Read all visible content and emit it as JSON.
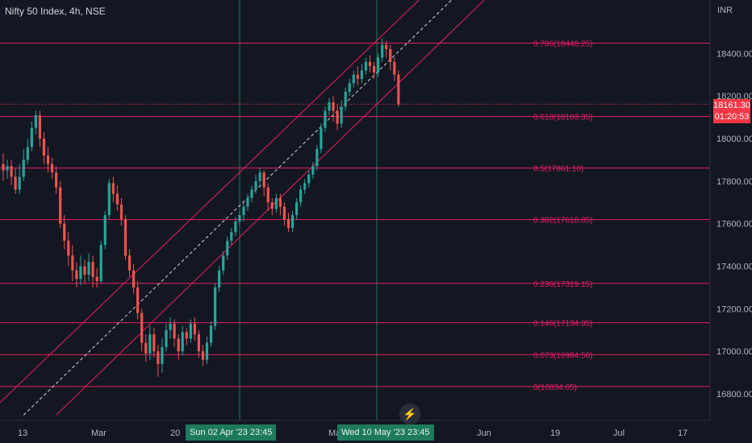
{
  "header": {
    "title": "Nifty 50 Index, 4h, NSE",
    "currency": "INR"
  },
  "last_price": {
    "value": "18161.30",
    "countdown": "01:20:53"
  },
  "crosshair_tags": [
    {
      "label": "Sun 02 Apr '23  23:45"
    },
    {
      "label": "Wed 10 May '23  23:45"
    }
  ],
  "colors": {
    "background": "#131722",
    "up": "#26a69a",
    "down": "#ef5350",
    "fib": "#e91e63",
    "channel": "#e91e63",
    "last_price": "#f23645"
  },
  "icons": {
    "alert": "lightning-bolt-icon"
  },
  "chart_data": {
    "type": "candlestick",
    "symbol": "Nifty 50 Index",
    "interval": "4h",
    "exchange": "NSE",
    "ylim": [
      16700,
      18600
    ],
    "y_ticks": [
      16800,
      17000,
      17200,
      17400,
      17600,
      17800,
      18000,
      18200,
      18400
    ],
    "x_ticks": [
      "13",
      "Mar",
      "20",
      "Apr",
      "May",
      "Jun",
      "19",
      "Jul",
      "17"
    ],
    "last_price": 18161.3,
    "fib_levels": [
      {
        "ratio": "0.786",
        "price": 18448.25,
        "label": "0.786(18448.25)"
      },
      {
        "ratio": "0.618",
        "price": 18103.35,
        "label": "0.618(18103.35)"
      },
      {
        "ratio": "0.5",
        "price": 17861.1,
        "label": "0.5(17861.10)"
      },
      {
        "ratio": "0.382",
        "price": 17618.85,
        "label": "0.382(17618.85)"
      },
      {
        "ratio": "0.236",
        "price": 17319.15,
        "label": "0.236(17319.15)"
      },
      {
        "ratio": "0.146",
        "price": 17134.35,
        "label": "0.146(17134.35)"
      },
      {
        "ratio": "0.073",
        "price": 16984.5,
        "label": "0.073(16984.50)"
      },
      {
        "ratio": "0",
        "price": 16834.65,
        "label": "0(16834.65)"
      }
    ],
    "channel": {
      "upper": [
        [
          -4,
          16700
        ],
        [
          102,
          18650
        ]
      ],
      "lower": [
        [
          13,
          16700
        ],
        [
          118,
          18650
        ]
      ],
      "mid": [
        [
          5,
          16700
        ],
        [
          110,
          18650
        ]
      ]
    },
    "candles": [
      [
        17880,
        17850,
        17930,
        17800
      ],
      [
        17850,
        17870,
        17900,
        17810
      ],
      [
        17870,
        17820,
        17900,
        17780
      ],
      [
        17820,
        17760,
        17860,
        17740
      ],
      [
        17760,
        17820,
        17880,
        17740
      ],
      [
        17820,
        17900,
        17950,
        17800
      ],
      [
        17900,
        17960,
        18000,
        17880
      ],
      [
        17960,
        18050,
        18080,
        17940
      ],
      [
        18050,
        18110,
        18130,
        18020
      ],
      [
        18110,
        18000,
        18130,
        17960
      ],
      [
        18000,
        17920,
        18030,
        17880
      ],
      [
        17920,
        17880,
        17960,
        17840
      ],
      [
        17880,
        17840,
        17910,
        17810
      ],
      [
        17840,
        17770,
        17870,
        17740
      ],
      [
        17770,
        17600,
        17800,
        17580
      ],
      [
        17600,
        17520,
        17640,
        17480
      ],
      [
        17520,
        17450,
        17560,
        17400
      ],
      [
        17450,
        17380,
        17500,
        17330
      ],
      [
        17380,
        17340,
        17420,
        17300
      ],
      [
        17340,
        17400,
        17450,
        17310
      ],
      [
        17400,
        17360,
        17430,
        17320
      ],
      [
        17360,
        17420,
        17460,
        17330
      ],
      [
        17420,
        17350,
        17450,
        17300
      ],
      [
        17350,
        17330,
        17390,
        17300
      ],
      [
        17330,
        17500,
        17520,
        17320
      ],
      [
        17500,
        17640,
        17660,
        17480
      ],
      [
        17640,
        17790,
        17810,
        17620
      ],
      [
        17790,
        17740,
        17820,
        17700
      ],
      [
        17740,
        17690,
        17780,
        17660
      ],
      [
        17690,
        17620,
        17720,
        17590
      ],
      [
        17620,
        17450,
        17640,
        17430
      ],
      [
        17450,
        17380,
        17480,
        17350
      ],
      [
        17380,
        17300,
        17410,
        17270
      ],
      [
        17300,
        17180,
        17330,
        17150
      ],
      [
        17180,
        17040,
        17200,
        17000
      ],
      [
        17040,
        16990,
        17080,
        16950
      ],
      [
        16990,
        17080,
        17120,
        16960
      ],
      [
        17080,
        17000,
        17110,
        16970
      ],
      [
        17000,
        16940,
        17030,
        16880
      ],
      [
        16940,
        17020,
        17060,
        16900
      ],
      [
        17020,
        17100,
        17130,
        17000
      ],
      [
        17100,
        17130,
        17160,
        17060
      ],
      [
        17130,
        17060,
        17150,
        17020
      ],
      [
        17060,
        17000,
        17080,
        16960
      ],
      [
        17000,
        17090,
        17120,
        16980
      ],
      [
        17090,
        17060,
        17110,
        17030
      ],
      [
        17060,
        17130,
        17150,
        17040
      ],
      [
        17130,
        17080,
        17160,
        17050
      ],
      [
        17080,
        17000,
        17100,
        16970
      ],
      [
        17000,
        16960,
        17030,
        16930
      ],
      [
        16960,
        17040,
        17070,
        16940
      ],
      [
        17040,
        17120,
        17140,
        17020
      ],
      [
        17120,
        17300,
        17320,
        17100
      ],
      [
        17300,
        17380,
        17400,
        17280
      ],
      [
        17380,
        17450,
        17470,
        17360
      ],
      [
        17450,
        17520,
        17540,
        17430
      ],
      [
        17520,
        17560,
        17580,
        17500
      ],
      [
        17560,
        17610,
        17630,
        17540
      ],
      [
        17610,
        17640,
        17660,
        17590
      ],
      [
        17640,
        17680,
        17700,
        17610
      ],
      [
        17680,
        17720,
        17740,
        17660
      ],
      [
        17720,
        17760,
        17780,
        17700
      ],
      [
        17760,
        17800,
        17830,
        17740
      ],
      [
        17800,
        17840,
        17860,
        17770
      ],
      [
        17840,
        17770,
        17850,
        17730
      ],
      [
        17770,
        17700,
        17790,
        17660
      ],
      [
        17700,
        17670,
        17720,
        17640
      ],
      [
        17670,
        17720,
        17740,
        17650
      ],
      [
        17720,
        17680,
        17740,
        17640
      ],
      [
        17680,
        17620,
        17700,
        17590
      ],
      [
        17620,
        17580,
        17650,
        17560
      ],
      [
        17580,
        17640,
        17660,
        17560
      ],
      [
        17640,
        17700,
        17720,
        17620
      ],
      [
        17700,
        17760,
        17780,
        17680
      ],
      [
        17760,
        17790,
        17810,
        17740
      ],
      [
        17790,
        17830,
        17850,
        17770
      ],
      [
        17830,
        17870,
        17890,
        17810
      ],
      [
        17870,
        17950,
        17970,
        17850
      ],
      [
        17950,
        18050,
        18070,
        17930
      ],
      [
        18050,
        18130,
        18150,
        18030
      ],
      [
        18130,
        18170,
        18190,
        18110
      ],
      [
        18170,
        18130,
        18200,
        18080
      ],
      [
        18130,
        18070,
        18160,
        18040
      ],
      [
        18070,
        18150,
        18180,
        18050
      ],
      [
        18150,
        18220,
        18240,
        18130
      ],
      [
        18220,
        18260,
        18280,
        18200
      ],
      [
        18260,
        18300,
        18320,
        18240
      ],
      [
        18300,
        18280,
        18340,
        18250
      ],
      [
        18280,
        18320,
        18350,
        18260
      ],
      [
        18320,
        18360,
        18380,
        18300
      ],
      [
        18360,
        18340,
        18390,
        18310
      ],
      [
        18340,
        18310,
        18360,
        18280
      ],
      [
        18310,
        18380,
        18400,
        18290
      ],
      [
        18380,
        18440,
        18470,
        18360
      ],
      [
        18440,
        18420,
        18460,
        18380
      ],
      [
        18420,
        18360,
        18440,
        18320
      ],
      [
        18360,
        18300,
        18380,
        18270
      ],
      [
        18300,
        18161.3,
        18320,
        18150
      ]
    ]
  }
}
